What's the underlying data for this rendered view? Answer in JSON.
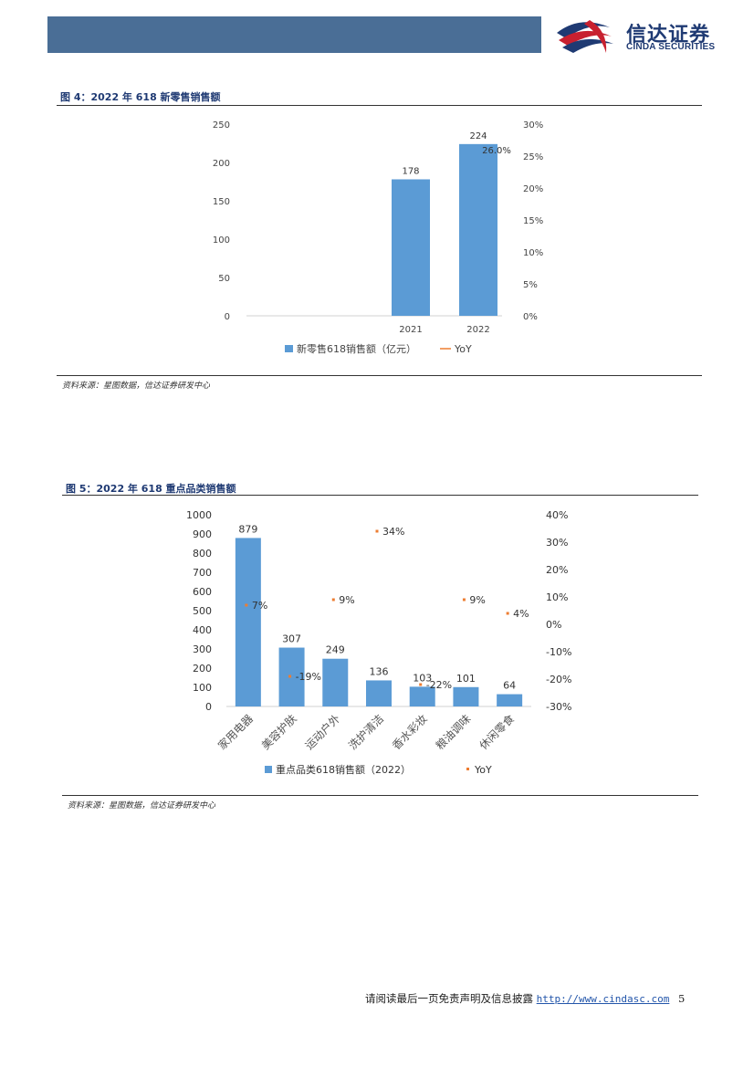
{
  "header": {
    "logo_cn": "信达证券",
    "logo_en": "CINDA SECURITIES"
  },
  "figures": [
    {
      "title": "图 4：2022 年 618 新零售销售额",
      "source": "资料来源：星图数据，信达证券研发中心"
    },
    {
      "title": "图 5：2022 年 618 重点品类销售额",
      "source": "资料来源：星图数据，信达证券研发中心"
    }
  ],
  "footer": {
    "text": "请阅读最后一页免责声明及信息披露",
    "link": "http://www.cindasc.com",
    "page": "5"
  },
  "chart_data": [
    {
      "type": "bar",
      "categories": [
        "2021",
        "2022"
      ],
      "series": [
        {
          "name": "新零售618销售额（亿元）",
          "values": [
            178,
            224
          ],
          "axis": "left",
          "color": "#5b9bd5"
        },
        {
          "name": "YoY",
          "values": [
            null,
            26.0
          ],
          "value_labels": [
            "",
            "26.0%"
          ],
          "axis": "right",
          "kind": "line",
          "color": "#ed7d31"
        }
      ],
      "ylim": [
        0,
        250
      ],
      "yticks": [
        0,
        50,
        100,
        150,
        200,
        250
      ],
      "y2lim": [
        0,
        30
      ],
      "y2ticks": [
        "0%",
        "5%",
        "10%",
        "15%",
        "20%",
        "25%",
        "30%"
      ],
      "legend": "bottom"
    },
    {
      "type": "bar",
      "categories": [
        "家用电器",
        "美容护肤",
        "运动户外",
        "洗护清洁",
        "香水彩妆",
        "粮油调味",
        "休闲零食"
      ],
      "series": [
        {
          "name": "重点品类618销售额（2022）",
          "values": [
            879,
            307,
            249,
            136,
            103,
            101,
            64
          ],
          "axis": "left",
          "color": "#5b9bd5"
        },
        {
          "name": "YoY",
          "values": [
            7,
            -19,
            9,
            34,
            -22,
            9,
            4
          ],
          "value_labels": [
            "7%",
            "-19%",
            "9%",
            "34%",
            "-22%",
            "9%",
            "4%"
          ],
          "axis": "right",
          "kind": "scatter",
          "color": "#ed7d31"
        }
      ],
      "ylim": [
        0,
        1000
      ],
      "yticks": [
        0,
        100,
        200,
        300,
        400,
        500,
        600,
        700,
        800,
        900,
        1000
      ],
      "y2lim": [
        -30,
        40
      ],
      "y2ticks": [
        "-30%",
        "-20%",
        "-10%",
        "0%",
        "10%",
        "20%",
        "30%",
        "40%"
      ],
      "legend": "bottom"
    }
  ]
}
